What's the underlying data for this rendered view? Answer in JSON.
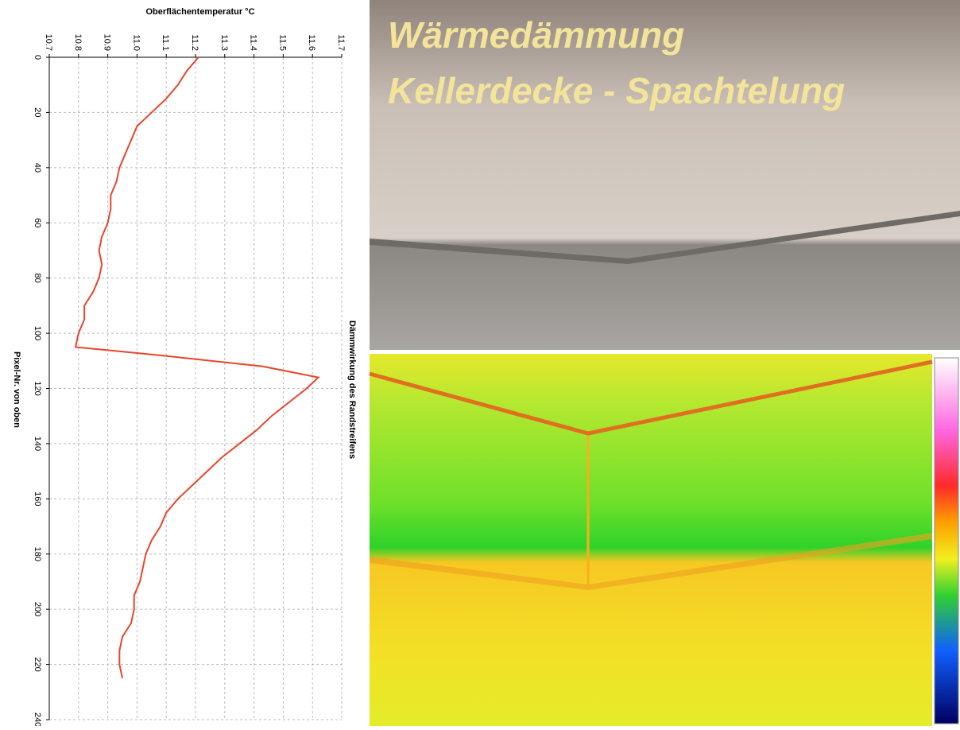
{
  "chart_data": {
    "type": "line",
    "title": "Oberflächentemperatur °C",
    "x_label": "Pixel-Nr. von oben",
    "annotation": "Dämmwirkung des Randstreifens",
    "x": [
      0,
      5,
      10,
      15,
      20,
      25,
      30,
      35,
      40,
      45,
      50,
      55,
      60,
      65,
      70,
      75,
      80,
      85,
      90,
      95,
      100,
      105,
      108,
      112,
      116,
      120,
      125,
      130,
      135,
      140,
      145,
      150,
      155,
      160,
      165,
      170,
      175,
      180,
      185,
      190,
      195,
      200,
      205,
      210,
      215,
      220,
      225
    ],
    "series": [
      {
        "color": "#e8452a",
        "values": [
          11.21,
          11.17,
          11.14,
          11.1,
          11.05,
          11.0,
          10.98,
          10.96,
          10.94,
          10.93,
          10.91,
          10.91,
          10.9,
          10.88,
          10.87,
          10.88,
          10.87,
          10.85,
          10.82,
          10.82,
          10.8,
          10.79,
          11.08,
          11.43,
          11.62,
          11.58,
          11.52,
          11.46,
          11.41,
          11.35,
          11.29,
          11.24,
          11.19,
          11.14,
          11.1,
          11.08,
          11.05,
          11.03,
          11.02,
          11.01,
          10.99,
          10.99,
          10.98,
          10.95,
          10.94,
          10.94,
          10.95
        ]
      }
    ],
    "xlim": [
      0,
      240
    ],
    "xticks": [
      0,
      20,
      40,
      60,
      80,
      100,
      120,
      140,
      160,
      180,
      200,
      220,
      240
    ],
    "ylim": [
      10.7,
      11.7
    ],
    "yticks": [
      10.7,
      10.8,
      10.9,
      {
        "value": 11,
        "label": "11.0"
      },
      11.1,
      11.2,
      11.3,
      11.4,
      11.5,
      11.6,
      11.7
    ],
    "grid": true
  },
  "photo": {
    "title_lines": [
      "Wärmedämmung",
      "Kellerdecke - Spachtelung"
    ]
  }
}
